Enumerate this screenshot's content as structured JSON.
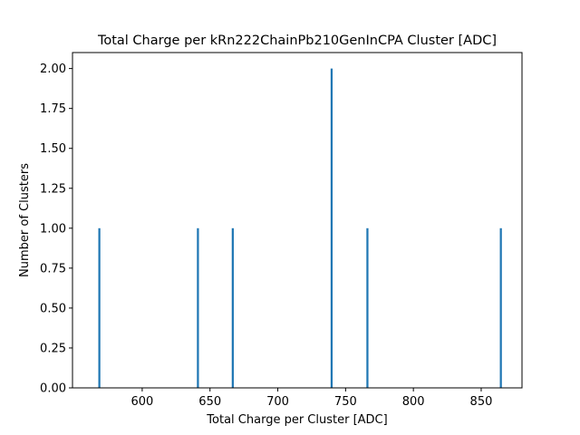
{
  "chart_data": {
    "type": "bar",
    "title": "Total Charge per kRn222ChainPb210GenInCPA Cluster [ADC]",
    "xlabel": "Total Charge per Cluster [ADC]",
    "ylabel": "Number of Clusters",
    "xlim": [
      548.6,
      880.1
    ],
    "ylim": [
      0,
      2.1
    ],
    "xticks": [
      600,
      650,
      700,
      750,
      800,
      850
    ],
    "yticks": [
      0.0,
      0.25,
      0.5,
      0.75,
      1.0,
      1.25,
      1.5,
      1.75,
      2.0
    ],
    "xtick_labels": [
      "600",
      "650",
      "700",
      "750",
      "800",
      "850"
    ],
    "ytick_labels": [
      "0.00",
      "0.25",
      "0.50",
      "0.75",
      "1.00",
      "1.25",
      "1.50",
      "1.75",
      "2.00"
    ],
    "bin_width": 1.5,
    "bars": [
      {
        "x": 568.4,
        "value": 1
      },
      {
        "x": 641.1,
        "value": 1
      },
      {
        "x": 666.8,
        "value": 1
      },
      {
        "x": 739.7,
        "value": 2
      },
      {
        "x": 766.1,
        "value": 1
      },
      {
        "x": 864.5,
        "value": 1
      }
    ],
    "bar_color": "#1f77b4",
    "grid": false,
    "legend": "none"
  }
}
